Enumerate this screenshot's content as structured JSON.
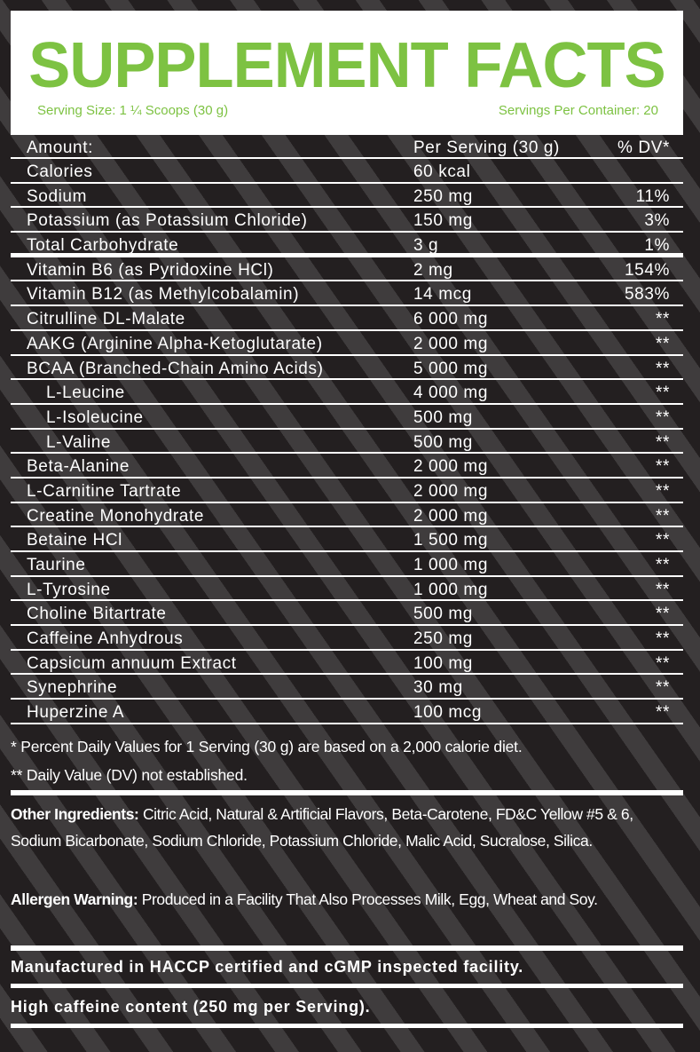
{
  "header": {
    "title": "SUPPLEMENT FACTS",
    "serving_size": "Serving Size: 1 ¼ Scoops (30 g)",
    "servings_per_container": "Servings Per Container: 20"
  },
  "table": {
    "columns": [
      "Amount:",
      "Per Serving (30 g)",
      "% DV*"
    ],
    "rows": [
      {
        "name": "Calories",
        "amount": "60 kcal",
        "dv": ""
      },
      {
        "name": "Sodium",
        "amount": "250 mg",
        "dv": "11%"
      },
      {
        "name": "Potassium (as Potassium Chloride)",
        "amount": "150 mg",
        "dv": "3%"
      },
      {
        "name": "Total Carbohydrate",
        "amount": "3 g",
        "dv": "1%"
      },
      {
        "name": "Vitamin B6 (as Pyridoxine HCl)",
        "amount": "2 mg",
        "dv": "154%"
      },
      {
        "name": "Vitamin B12 (as Methylcobalamin)",
        "amount": "14 mcg",
        "dv": "583%"
      },
      {
        "name": "Citrulline DL-Malate",
        "amount": "6 000 mg",
        "dv": "**"
      },
      {
        "name": "AAKG (Arginine Alpha-Ketoglutarate)",
        "amount": "2 000 mg",
        "dv": "**"
      },
      {
        "name": "BCAA (Branched-Chain Amino Acids)",
        "amount": "5 000 mg",
        "dv": "**"
      },
      {
        "name": "L-Leucine",
        "amount": "4 000 mg",
        "dv": "**",
        "indent": true
      },
      {
        "name": "L-Isoleucine",
        "amount": "500 mg",
        "dv": "**",
        "indent": true
      },
      {
        "name": "L-Valine",
        "amount": "500 mg",
        "dv": "**",
        "indent": true
      },
      {
        "name": "Beta-Alanine",
        "amount": "2 000 mg",
        "dv": "**"
      },
      {
        "name": "L-Carnitine Tartrate",
        "amount": "2 000 mg",
        "dv": "**"
      },
      {
        "name": "Creatine Monohydrate",
        "amount": "2 000 mg",
        "dv": "**"
      },
      {
        "name": "Betaine HCl",
        "amount": "1 500 mg",
        "dv": "**"
      },
      {
        "name": "Taurine",
        "amount": "1 000 mg",
        "dv": "**"
      },
      {
        "name": "L-Tyrosine",
        "amount": "1 000 mg",
        "dv": "**"
      },
      {
        "name": "Choline Bitartrate",
        "amount": "500 mg",
        "dv": "**"
      },
      {
        "name": "Caffeine Anhydrous",
        "amount": "250 mg",
        "dv": "**"
      },
      {
        "name": "Capsicum annuum Extract",
        "amount": "100 mg",
        "dv": "**"
      },
      {
        "name": "Synephrine",
        "amount": "30 mg",
        "dv": "**"
      },
      {
        "name": "Huperzine A",
        "amount": "100 mcg",
        "dv": "**"
      }
    ]
  },
  "footnotes": [
    "* Percent Daily Values for 1 Serving (30 g) are based on a 2,000 calorie diet.",
    "** Daily Value (DV) not established."
  ],
  "other_ingredients": {
    "label": "Other Ingredients:",
    "text": " Citric Acid, Natural & Artificial Flavors, Beta-Carotene, FD&C Yellow #5 & 6, Sodium Bicarbonate, Sodium Chloride, Potassium Chloride, Malic Acid, Sucralose, Silica."
  },
  "allergen": {
    "label": "Allergen Warning:",
    "text": " Produced in a Facility That Also Processes Milk, Egg, Wheat and Soy."
  },
  "manufactured": "Manufactured in HACCP certified and cGMP inspected facility.",
  "caffeine_note": "High caffeine content (250 mg per Serving).",
  "colors": {
    "accent": "#7dc242",
    "background": "#231f20"
  }
}
